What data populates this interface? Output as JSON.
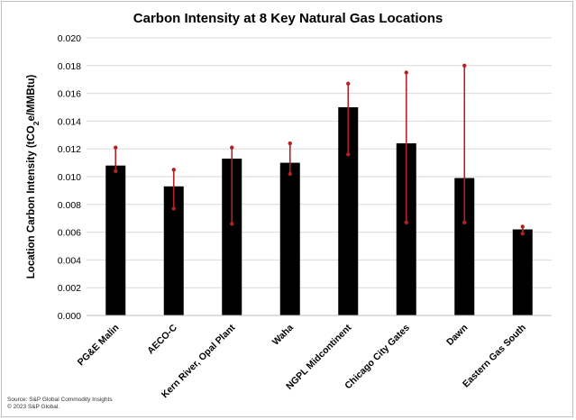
{
  "chart_data": {
    "type": "bar",
    "title": "Carbon Intensity at 8 Key Natural Gas Locations",
    "xlabel": "",
    "ylabel_main": "Location Carbon Intensity (tCO",
    "ylabel_sub": "2",
    "ylabel_tail": "e/MMBtu)",
    "ylim": [
      0,
      0.02
    ],
    "yticks": [
      "0.000",
      "0.002",
      "0.004",
      "0.006",
      "0.008",
      "0.010",
      "0.012",
      "0.014",
      "0.016",
      "0.018",
      "0.020"
    ],
    "grid": true,
    "legend": "none",
    "categories": [
      "PG&E Malin",
      "AECO-C",
      "Kern River, Opal Plant",
      "Waha",
      "NGPL Midcontinent",
      "Chicago City Gates",
      "Dawn",
      "Eastern Gas South"
    ],
    "values": [
      0.0108,
      0.0093,
      0.0113,
      0.011,
      0.015,
      0.0124,
      0.0099,
      0.0062
    ],
    "error_low": [
      0.0104,
      0.0077,
      0.0066,
      0.0102,
      0.0116,
      0.0067,
      0.0067,
      0.0059
    ],
    "error_high": [
      0.0121,
      0.0105,
      0.0121,
      0.0124,
      0.0167,
      0.0175,
      0.018,
      0.0064
    ],
    "bar_color": "#000000",
    "error_color": "#b22222",
    "grid_color": "#d9d9d9"
  },
  "source": {
    "line1": "Source: S&P Global Commodity Insights",
    "line2": "© 2023 S&P Global."
  }
}
